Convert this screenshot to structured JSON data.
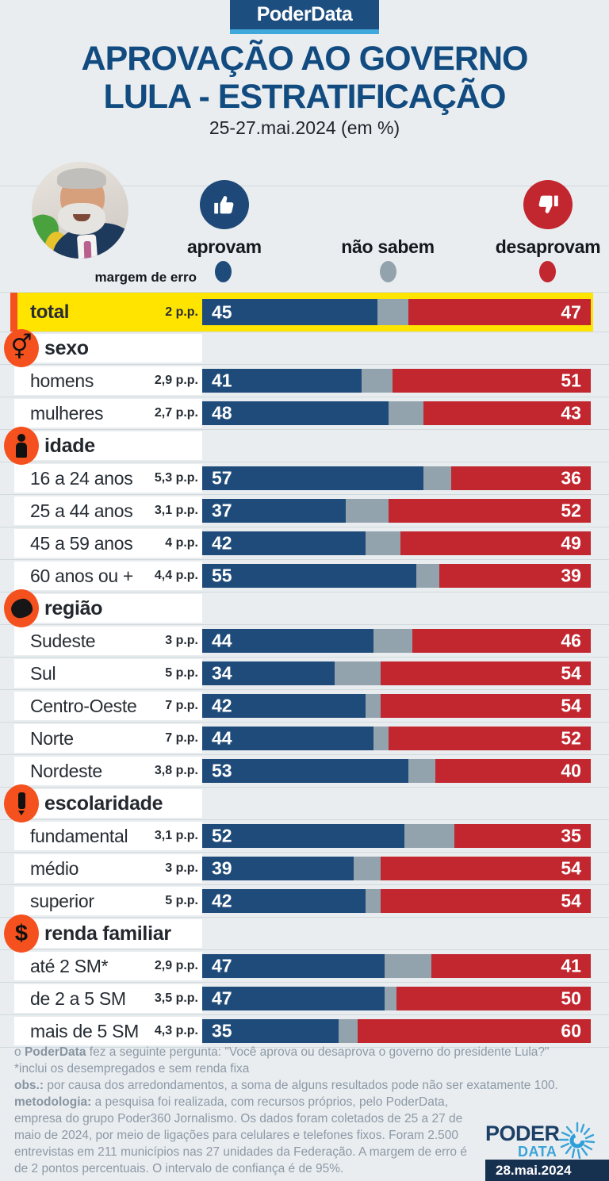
{
  "header": {
    "badge": "PoderData",
    "title_line1": "APROVAÇÃO AO GOVERNO",
    "title_line2": "LULA - ESTRATIFICAÇÃO",
    "subtitle": "25-27.mai.2024 (em %)"
  },
  "legend": {
    "approve_label": "aprovam",
    "unsure_label": "não sabem",
    "disapprove_label": "desaprovam",
    "margin_label": "margem de erro",
    "approve_color": "#1e4b79",
    "unsure_color": "#93a3ad",
    "disapprove_color": "#c2262f",
    "highlight_yellow": "#ffe400",
    "accent_orange": "#f4511e",
    "brand_dark_blue": "#1d4e80",
    "brand_light_blue": "#3fa9dc"
  },
  "chart_data": {
    "type": "bar",
    "orientation": "horizontal-stacked",
    "unit": "%",
    "xlim": [
      0,
      100
    ],
    "series_names": [
      "aprovam",
      "não sabem",
      "desaprovam"
    ],
    "title": "APROVAÇÃO AO GOVERNO LULA - ESTRATIFICAÇÃO",
    "subtitle": "25-27.mai.2024 (em %)",
    "rows": [
      {
        "kind": "total",
        "label": "total",
        "margin": "2 p.p.",
        "approve": 45,
        "unsure": 8,
        "disapprove": 47
      },
      {
        "kind": "section",
        "label": "sexo",
        "icon": "gender-icon"
      },
      {
        "kind": "data",
        "label": "homens",
        "margin": "2,9 p.p.",
        "approve": 41,
        "unsure": 8,
        "disapprove": 51
      },
      {
        "kind": "data",
        "label": "mulheres",
        "margin": "2,7 p.p.",
        "approve": 48,
        "unsure": 9,
        "disapprove": 43
      },
      {
        "kind": "section",
        "label": "idade",
        "icon": "person-icon"
      },
      {
        "kind": "data",
        "label": "16 a 24 anos",
        "margin": "5,3 p.p.",
        "approve": 57,
        "unsure": 7,
        "disapprove": 36
      },
      {
        "kind": "data",
        "label": "25 a 44 anos",
        "margin": "3,1 p.p.",
        "approve": 37,
        "unsure": 11,
        "disapprove": 52
      },
      {
        "kind": "data",
        "label": "45 a 59 anos",
        "margin": "4 p.p.",
        "approve": 42,
        "unsure": 9,
        "disapprove": 49
      },
      {
        "kind": "data",
        "label": "60 anos ou +",
        "margin": "4,4 p.p.",
        "approve": 55,
        "unsure": 6,
        "disapprove": 39
      },
      {
        "kind": "section",
        "label": "região",
        "icon": "brazil-map-icon"
      },
      {
        "kind": "data",
        "label": "Sudeste",
        "margin": "3 p.p.",
        "approve": 44,
        "unsure": 10,
        "disapprove": 46
      },
      {
        "kind": "data",
        "label": "Sul",
        "margin": "5 p.p.",
        "approve": 34,
        "unsure": 12,
        "disapprove": 54
      },
      {
        "kind": "data",
        "label": "Centro-Oeste",
        "margin": "7 p.p.",
        "approve": 42,
        "unsure": 4,
        "disapprove": 54
      },
      {
        "kind": "data",
        "label": "Norte",
        "margin": "7 p.p.",
        "approve": 44,
        "unsure": 4,
        "disapprove": 52
      },
      {
        "kind": "data",
        "label": "Nordeste",
        "margin": "3,8 p.p.",
        "approve": 53,
        "unsure": 7,
        "disapprove": 40
      },
      {
        "kind": "section",
        "label": "escolaridade",
        "icon": "pencil-icon"
      },
      {
        "kind": "data",
        "label": "fundamental",
        "margin": "3,1 p.p.",
        "approve": 52,
        "unsure": 13,
        "disapprove": 35
      },
      {
        "kind": "data",
        "label": "médio",
        "margin": "3 p.p.",
        "approve": 39,
        "unsure": 7,
        "disapprove": 54
      },
      {
        "kind": "data",
        "label": "superior",
        "margin": "5 p.p.",
        "approve": 42,
        "unsure": 4,
        "disapprove": 54
      },
      {
        "kind": "section",
        "label": "renda familiar",
        "icon": "dollar-icon"
      },
      {
        "kind": "data",
        "label": "até 2 SM*",
        "margin": "2,9 p.p.",
        "approve": 47,
        "unsure": 12,
        "disapprove": 41
      },
      {
        "kind": "data",
        "label": "de 2 a 5 SM",
        "margin": "3,5 p.p.",
        "approve": 47,
        "unsure": 3,
        "disapprove": 50
      },
      {
        "kind": "data",
        "label": "mais de 5 SM",
        "margin": "4,3 p.p.",
        "approve": 35,
        "unsure": 5,
        "disapprove": 60
      }
    ]
  },
  "footer": {
    "q_prefix": "o ",
    "q_brand": "PoderData",
    "q_rest": " fez a seguinte pergunta: \"Você aprova ou desaprova o governo do presidente Lula?\"",
    "note": "*inclui os desempregados e sem renda fixa",
    "obs_label": "obs.:",
    "obs_text": " por causa dos arredondamentos, a soma de alguns resultados pode não ser exatamente 100.",
    "met_label": "metodologia:",
    "met_text": " a pesquisa foi realizada, com recursos próprios, pelo PoderData, empresa do grupo Poder360 Jornalismo. Os dados foram coletados de 25 a 27 de maio de 2024, por meio de ligações para celulares e telefones fixos. Foram 2.500 entrevistas em 211 municípios nas 27 unidades da Federação. A margem de erro é de 2 pontos percentuais. O intervalo de confiança é de 95%."
  },
  "logo": {
    "poder": "PODER",
    "data": "DATA",
    "date": "28.mai.2024"
  }
}
